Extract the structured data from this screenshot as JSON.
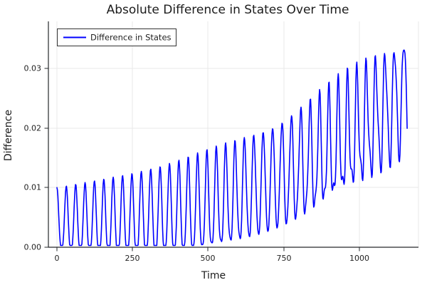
{
  "chart_data": {
    "type": "line",
    "title": "Absolute Difference in States Over Time",
    "xlabel": "Time",
    "ylabel": "Difference",
    "grid": true,
    "legend": {
      "position": "top-left",
      "entries": [
        {
          "label": "Difference in States",
          "color": "#0000ff"
        }
      ]
    },
    "xaxis": {
      "label": "Time",
      "tick_labels": [
        "0",
        "250",
        "500",
        "750",
        "1000"
      ],
      "tick_values": [
        0,
        250,
        500,
        750,
        1000
      ],
      "range": [
        0,
        1195
      ]
    },
    "yaxis": {
      "label": "Difference",
      "tick_labels": [
        "0.00",
        "0.01",
        "0.02",
        "0.03"
      ],
      "tick_values": [
        0,
        0.01,
        0.02,
        0.03
      ],
      "range": [
        0,
        0.0379
      ]
    },
    "series": [
      {
        "name": "Difference in States",
        "color": "#0000ff",
        "line_width": 1.6,
        "t_start": 0,
        "t_end": 1158,
        "t_step": 1.5,
        "period": 31,
        "start_value": 0.01,
        "generator": {
          "mid_base": 0.005,
          "mid_gain": 0.022,
          "mid_power": 2.3,
          "mid_tscale": 1150,
          "amp_max": 0.0096,
          "amp_drop": 0.0046,
          "amp_tau": 500,
          "shape_power": 1.55,
          "wiggle_amp": 0.003,
          "wiggle_power": 2.5,
          "wiggle_freq_ratio": 2.07,
          "wiggle_phase": 1.0,
          "clamp_min": 0.0003,
          "clamp_max": 0.0372
        },
        "envelope_samples": {
          "t": [
            0,
            250,
            500,
            750,
            1000,
            1150
          ],
          "upper": [
            0.01,
            0.0123,
            0.0176,
            0.0235,
            0.0301,
            0.0372
          ],
          "lower": [
            0.0,
            0.0,
            0.0005,
            0.004,
            0.011,
            0.016
          ]
        }
      }
    ]
  },
  "colors": {
    "line": "#0000ff",
    "grid": "#e8e8e8",
    "axis": "#26282b",
    "text": "#1c1c1c",
    "background": "#ffffff",
    "legend_border": "#333333"
  }
}
